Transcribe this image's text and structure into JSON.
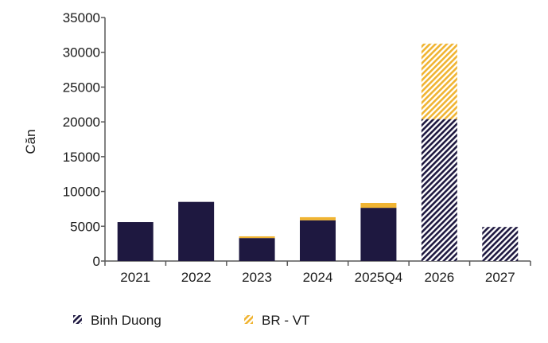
{
  "chart_data": {
    "type": "bar",
    "stacked": true,
    "categories": [
      "2021",
      "2022",
      "2023",
      "2024",
      "2025Q4",
      "2026",
      "2027"
    ],
    "series": [
      {
        "name": "Binh Duong",
        "values": [
          5600,
          8500,
          3300,
          5850,
          7650,
          20400,
          4900
        ],
        "color": "#1e1840"
      },
      {
        "name": "BR - VT",
        "values": [
          0,
          0,
          250,
          450,
          700,
          10850,
          0
        ],
        "color": "#f0b432"
      }
    ],
    "hatched_categories": [
      "2026",
      "2027"
    ],
    "ylabel": "Căn",
    "xlabel": "",
    "ylim": [
      0,
      35000
    ],
    "yticks": [
      0,
      5000,
      10000,
      15000,
      20000,
      25000,
      30000,
      35000
    ],
    "grid": false,
    "legend": "bottom"
  }
}
